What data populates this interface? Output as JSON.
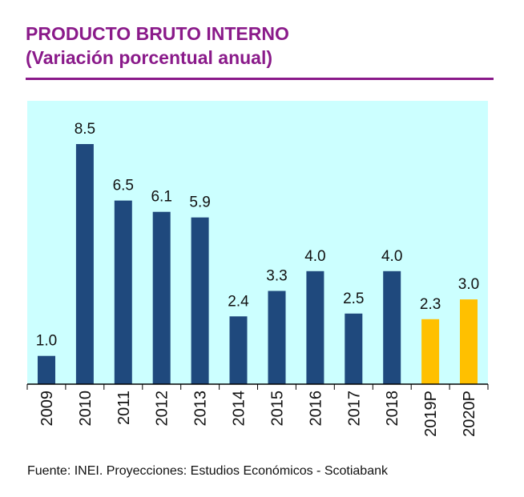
{
  "header": {
    "title": "PRODUCTO BRUTO INTERNO",
    "subtitle": "(Variación porcentual anual)"
  },
  "footer": {
    "source": "Fuente: INEI.  Proyecciones: Estudios Económicos - Scotiabank"
  },
  "colors": {
    "title": "#8a1a8a",
    "plot_background": "#ccffff",
    "actual_bar": "#1f497d",
    "projection_bar": "#ffc000",
    "axis": "#000000"
  },
  "chart_data": {
    "type": "bar",
    "title": "PRODUCTO BRUTO INTERNO",
    "subtitle": "(Variación porcentual anual)",
    "xlabel": "",
    "ylabel": "",
    "ylim": [
      0,
      10
    ],
    "grid": false,
    "categories": [
      "2009",
      "2010",
      "2011",
      "2012",
      "2013",
      "2014",
      "2015",
      "2016",
      "2017",
      "2018",
      "2019P",
      "2020P"
    ],
    "values": [
      1.0,
      8.5,
      6.5,
      6.1,
      5.9,
      2.4,
      3.3,
      4.0,
      2.5,
      4.0,
      2.3,
      3.0
    ],
    "value_labels": [
      "1.0",
      "8.5",
      "6.5",
      "6.1",
      "5.9",
      "2.4",
      "3.3",
      "4.0",
      "2.5",
      "4.0",
      "2.3",
      "3.0"
    ],
    "series_kind": [
      "actual",
      "actual",
      "actual",
      "actual",
      "actual",
      "actual",
      "actual",
      "actual",
      "actual",
      "actual",
      "projection",
      "projection"
    ]
  }
}
